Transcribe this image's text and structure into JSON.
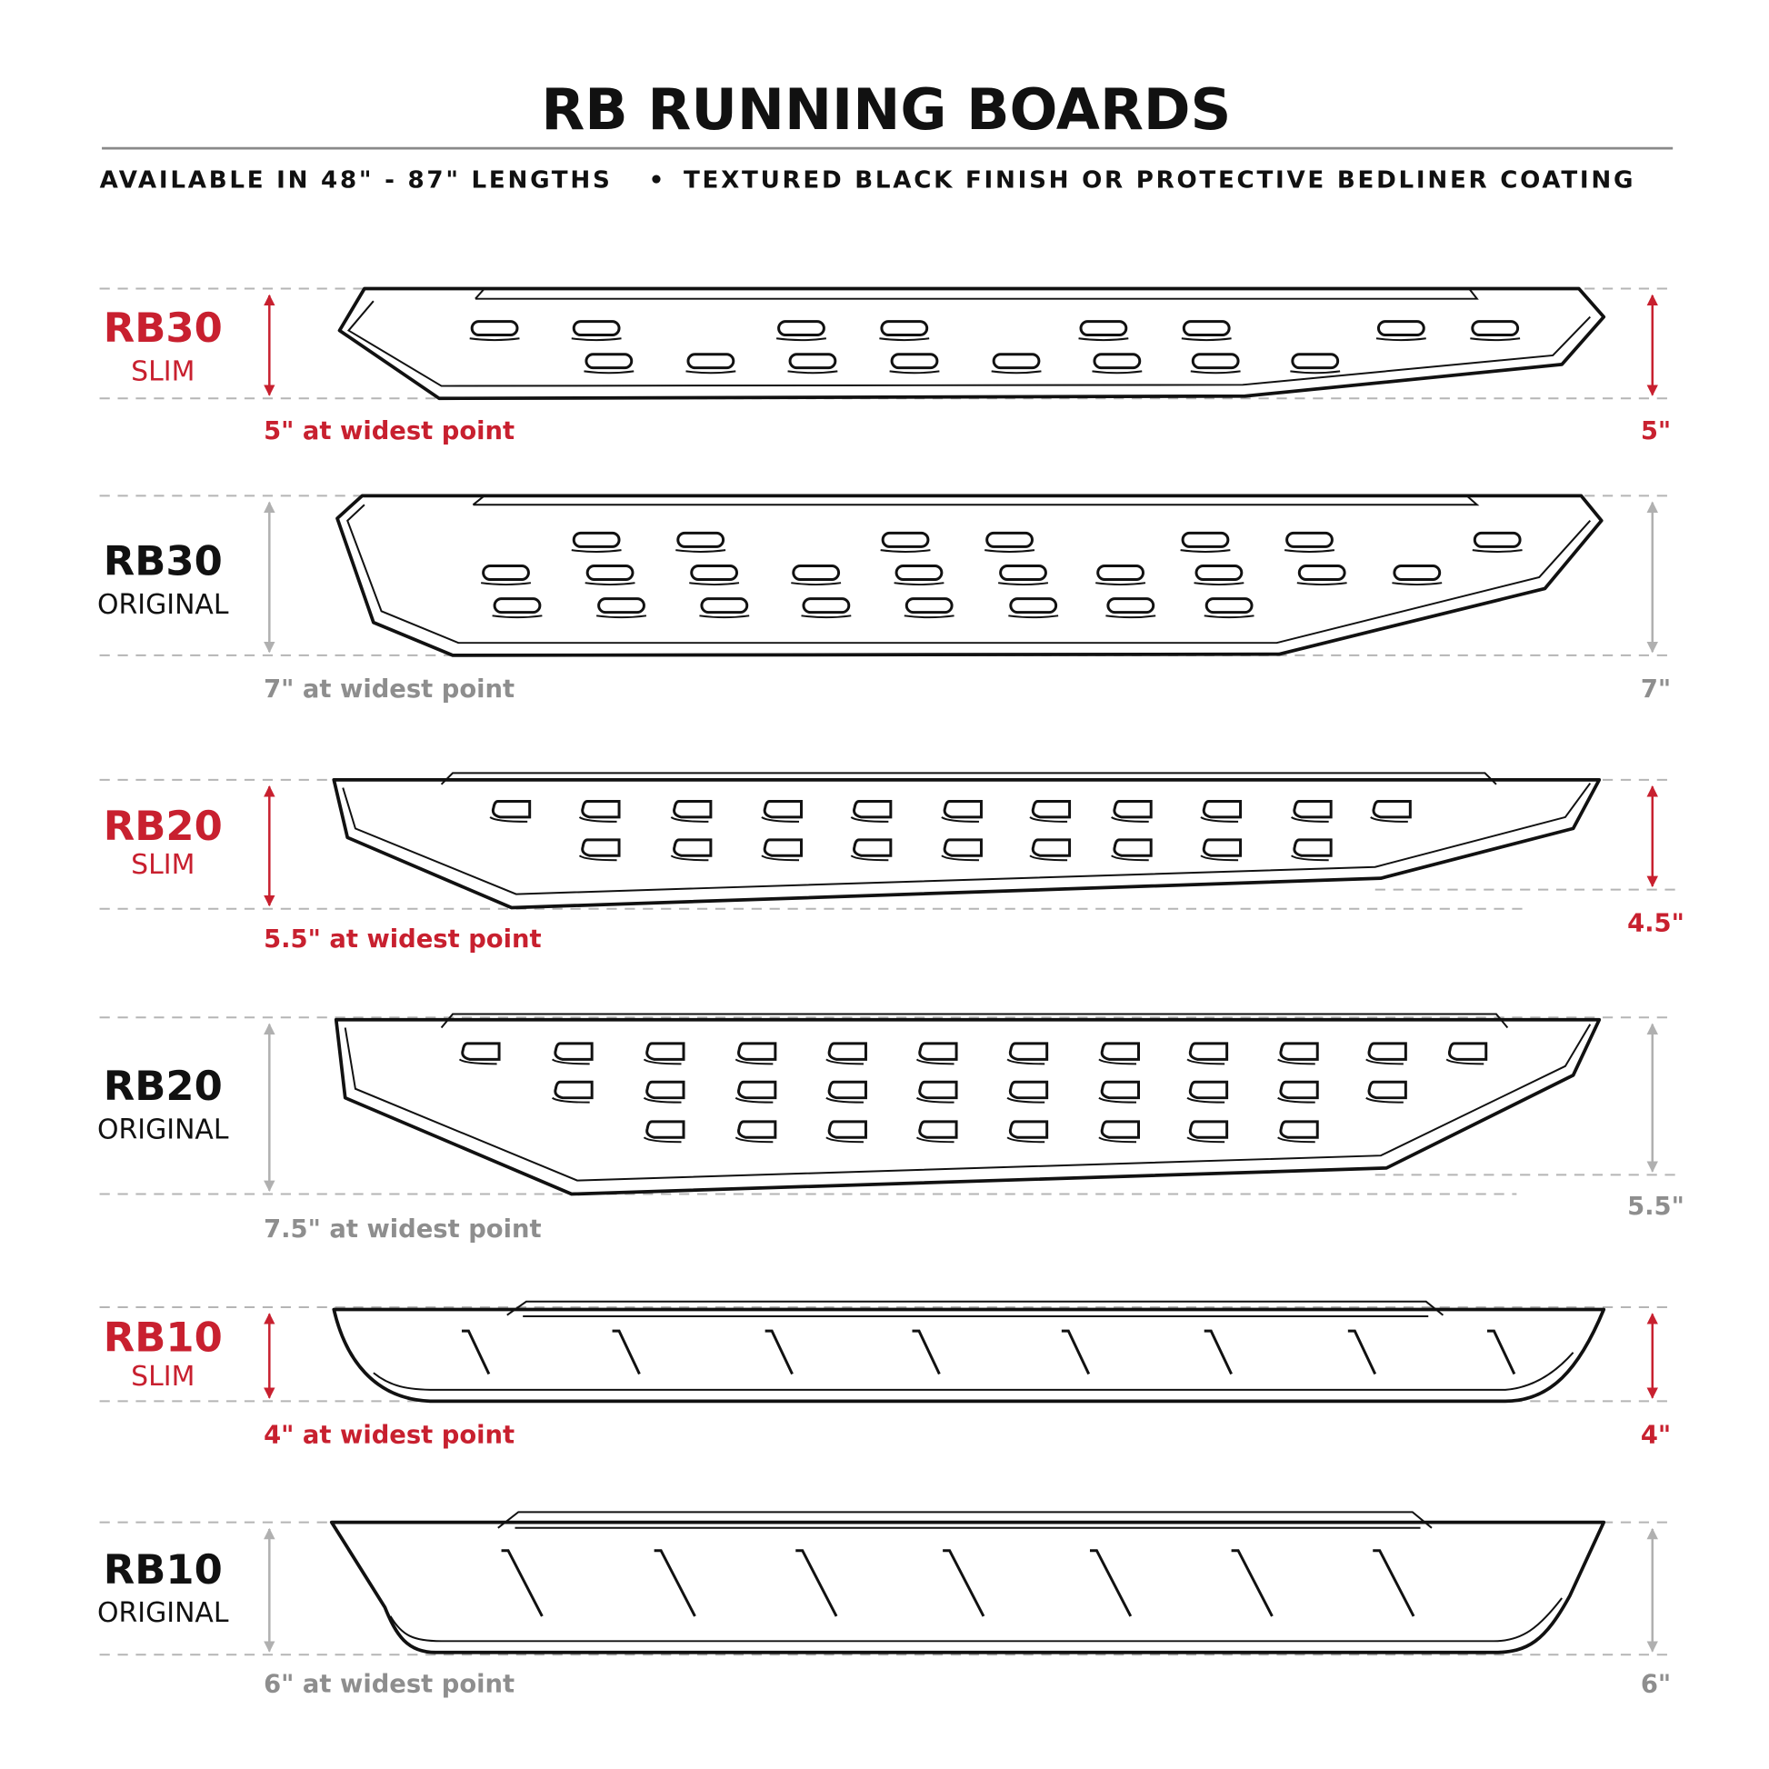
{
  "header": {
    "title": "RB RUNNING BOARDS",
    "subtitle_left": "AVAILABLE IN 48\" - 87\" LENGTHS",
    "subtitle_separator": "•",
    "subtitle_right": "TEXTURED BLACK FINISH OR PROTECTIVE BEDLINER COATING"
  },
  "colors": {
    "accent_red": "#c8202f",
    "neutral_gray": "#8e8e8e",
    "text_black": "#111111"
  },
  "boards": [
    {
      "name": "RB30",
      "variant": "SLIM",
      "caption": "5\" at widest point",
      "right_dim": "5\"",
      "highlight": "red"
    },
    {
      "name": "RB30",
      "variant": "ORIGINAL",
      "caption": "7\" at widest point",
      "right_dim": "7\"",
      "highlight": "gray"
    },
    {
      "name": "RB20",
      "variant": "SLIM",
      "caption": "5.5\" at widest point",
      "right_dim": "4.5\"",
      "highlight": "red"
    },
    {
      "name": "RB20",
      "variant": "ORIGINAL",
      "caption": "7.5\" at widest point",
      "right_dim": "5.5\"",
      "highlight": "gray"
    },
    {
      "name": "RB10",
      "variant": "SLIM",
      "caption": "4\" at widest point",
      "right_dim": "4\"",
      "highlight": "red"
    },
    {
      "name": "RB10",
      "variant": "ORIGINAL",
      "caption": "6\" at widest point",
      "right_dim": "6\"",
      "highlight": "gray"
    }
  ]
}
